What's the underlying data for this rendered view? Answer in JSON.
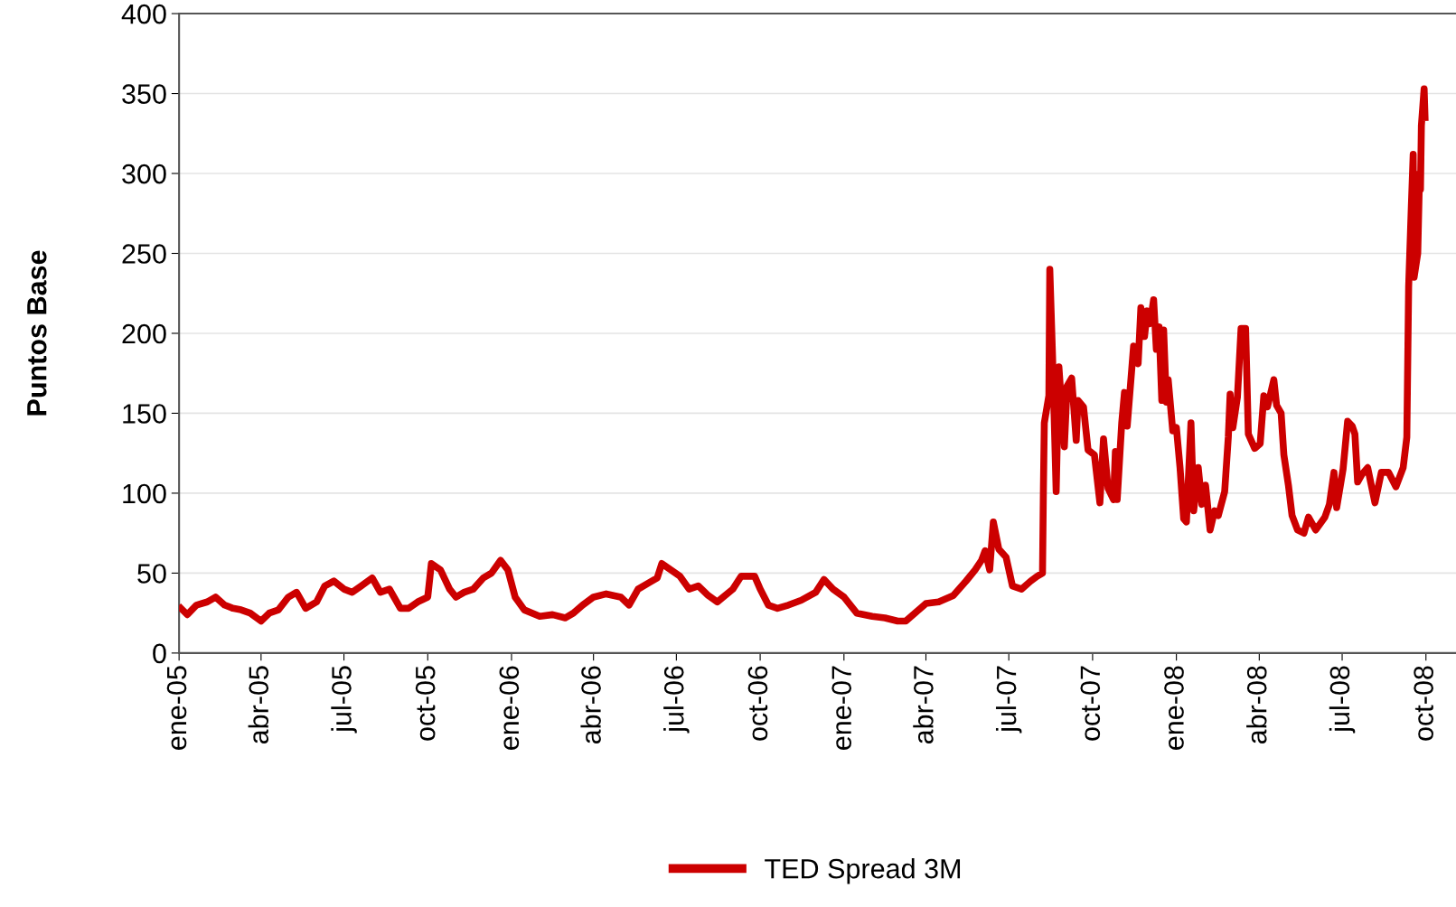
{
  "chart_data": {
    "type": "line",
    "ylabel": "Puntos Base",
    "legend": "bottom",
    "grid": "y",
    "line_style": "solid",
    "marker": "none",
    "xlim": [
      "2005-01-01",
      "2008-11-03"
    ],
    "ylim": [
      0,
      400
    ],
    "yticks": [
      0,
      50,
      100,
      150,
      200,
      250,
      300,
      350,
      400
    ],
    "xticks": [
      {
        "value": "2005-01-01",
        "label": "ene-05"
      },
      {
        "value": "2005-04-01",
        "label": "abr-05"
      },
      {
        "value": "2005-07-01",
        "label": "jul-05"
      },
      {
        "value": "2005-10-01",
        "label": "oct-05"
      },
      {
        "value": "2006-01-01",
        "label": "ene-06"
      },
      {
        "value": "2006-04-01",
        "label": "abr-06"
      },
      {
        "value": "2006-07-01",
        "label": "jul-06"
      },
      {
        "value": "2006-10-01",
        "label": "oct-06"
      },
      {
        "value": "2007-01-01",
        "label": "ene-07"
      },
      {
        "value": "2007-04-01",
        "label": "abr-07"
      },
      {
        "value": "2007-07-01",
        "label": "jul-07"
      },
      {
        "value": "2007-10-01",
        "label": "oct-07"
      },
      {
        "value": "2008-01-01",
        "label": "ene-08"
      },
      {
        "value": "2008-04-01",
        "label": "abr-08"
      },
      {
        "value": "2008-07-01",
        "label": "jul-08"
      },
      {
        "value": "2008-10-01",
        "label": "oct-08"
      }
    ],
    "x": [
      "2005-01-03",
      "2005-01-10",
      "2005-01-20",
      "2005-02-01",
      "2005-02-10",
      "2005-02-20",
      "2005-03-01",
      "2005-03-10",
      "2005-03-20",
      "2005-04-01",
      "2005-04-10",
      "2005-04-20",
      "2005-05-01",
      "2005-05-10",
      "2005-05-20",
      "2005-06-01",
      "2005-06-10",
      "2005-06-20",
      "2005-07-01",
      "2005-07-10",
      "2005-07-20",
      "2005-08-01",
      "2005-08-10",
      "2005-08-20",
      "2005-09-01",
      "2005-09-10",
      "2005-09-20",
      "2005-10-01",
      "2005-10-05",
      "2005-10-15",
      "2005-10-25",
      "2005-11-01",
      "2005-11-10",
      "2005-11-20",
      "2005-12-01",
      "2005-12-10",
      "2005-12-20",
      "2005-12-28",
      "2006-01-05",
      "2006-01-15",
      "2006-02-01",
      "2006-02-15",
      "2006-03-01",
      "2006-03-10",
      "2006-03-20",
      "2006-04-01",
      "2006-04-15",
      "2006-05-01",
      "2006-05-10",
      "2006-05-20",
      "2006-06-01",
      "2006-06-10",
      "2006-06-15",
      "2006-06-25",
      "2006-07-05",
      "2006-07-15",
      "2006-07-25",
      "2006-08-05",
      "2006-08-15",
      "2006-09-01",
      "2006-09-10",
      "2006-09-25",
      "2006-10-01",
      "2006-10-10",
      "2006-10-20",
      "2006-11-01",
      "2006-11-15",
      "2006-12-01",
      "2006-12-10",
      "2006-12-20",
      "2007-01-01",
      "2007-01-15",
      "2007-02-01",
      "2007-02-15",
      "2007-03-01",
      "2007-03-10",
      "2007-03-20",
      "2007-04-01",
      "2007-04-15",
      "2007-05-01",
      "2007-05-15",
      "2007-05-25",
      "2007-06-01",
      "2007-06-05",
      "2007-06-10",
      "2007-06-14",
      "2007-06-20",
      "2007-06-28",
      "2007-07-05",
      "2007-07-15",
      "2007-07-25",
      "2007-08-01",
      "2007-08-07",
      "2007-08-08",
      "2007-08-09",
      "2007-08-14",
      "2007-08-15",
      "2007-08-18",
      "2007-08-22",
      "2007-08-25",
      "2007-08-31",
      "2007-09-03",
      "2007-09-08",
      "2007-09-13",
      "2007-09-15",
      "2007-09-21",
      "2007-09-26",
      "2007-10-03",
      "2007-10-09",
      "2007-10-13",
      "2007-10-18",
      "2007-10-24",
      "2007-10-26",
      "2007-10-28",
      "2007-11-02",
      "2007-11-05",
      "2007-11-08",
      "2007-11-15",
      "2007-11-20",
      "2007-11-23",
      "2007-11-27",
      "2007-11-30",
      "2007-12-03",
      "2007-12-07",
      "2007-12-10",
      "2007-12-13",
      "2007-12-16",
      "2007-12-18",
      "2007-12-21",
      "2007-12-23",
      "2007-12-28",
      "2008-01-01",
      "2008-01-05",
      "2008-01-09",
      "2008-01-12",
      "2008-01-17",
      "2008-01-20",
      "2008-01-25",
      "2008-01-29",
      "2008-02-02",
      "2008-02-07",
      "2008-02-12",
      "2008-02-16",
      "2008-02-23",
      "2008-02-27",
      "2008-02-29",
      "2008-03-03",
      "2008-03-08",
      "2008-03-12",
      "2008-03-17",
      "2008-03-20",
      "2008-03-27",
      "2008-04-02",
      "2008-04-06",
      "2008-04-10",
      "2008-04-17",
      "2008-04-20",
      "2008-04-25",
      "2008-04-28",
      "2008-05-03",
      "2008-05-07",
      "2008-05-13",
      "2008-05-20",
      "2008-05-25",
      "2008-06-02",
      "2008-06-12",
      "2008-06-17",
      "2008-06-22",
      "2008-06-25",
      "2008-07-02",
      "2008-07-07",
      "2008-07-12",
      "2008-07-15",
      "2008-07-18",
      "2008-07-23",
      "2008-07-29",
      "2008-08-06",
      "2008-08-13",
      "2008-08-21",
      "2008-08-29",
      "2008-09-06",
      "2008-09-10",
      "2008-09-12",
      "2008-09-15",
      "2008-09-17",
      "2008-09-18",
      "2008-09-22",
      "2008-09-24",
      "2008-09-25",
      "2008-09-26",
      "2008-09-29",
      "2008-09-30"
    ],
    "series": [
      {
        "name": "TED Spread 3M",
        "color": "#cc0000",
        "values": [
          28,
          24,
          30,
          32,
          35,
          30,
          28,
          27,
          25,
          20,
          25,
          27,
          35,
          38,
          28,
          32,
          42,
          45,
          40,
          38,
          42,
          47,
          38,
          40,
          28,
          28,
          32,
          35,
          56,
          52,
          40,
          35,
          38,
          40,
          47,
          50,
          58,
          52,
          35,
          27,
          23,
          24,
          22,
          25,
          30,
          35,
          37,
          35,
          30,
          40,
          44,
          47,
          56,
          52,
          48,
          40,
          42,
          36,
          32,
          40,
          48,
          48,
          40,
          30,
          28,
          30,
          33,
          38,
          46,
          40,
          35,
          25,
          23,
          22,
          20,
          20,
          25,
          31,
          32,
          36,
          45,
          52,
          58,
          64,
          52,
          82,
          65,
          60,
          42,
          40,
          45,
          48,
          50,
          103,
          144,
          161,
          240,
          186,
          101,
          179,
          129,
          167,
          172,
          133,
          158,
          154,
          127,
          124,
          94,
          134,
          103,
          96,
          126,
          96,
          144,
          163,
          142,
          192,
          181,
          216,
          198,
          214,
          206,
          221,
          190,
          204,
          158,
          202,
          157,
          171,
          139,
          141,
          116,
          84,
          82,
          144,
          89,
          116,
          93,
          105,
          77,
          89,
          86,
          101,
          135,
          162,
          141,
          160,
          203,
          203,
          137,
          128,
          131,
          161,
          154,
          171,
          155,
          150,
          124,
          105,
          86,
          77,
          75,
          85,
          77,
          85,
          93,
          113,
          91,
          115,
          145,
          142,
          137,
          107,
          112,
          116,
          94,
          113,
          113,
          104,
          116,
          135,
          229,
          280,
          312,
          235,
          250,
          300,
          290,
          330,
          353,
          335
        ]
      }
    ]
  }
}
